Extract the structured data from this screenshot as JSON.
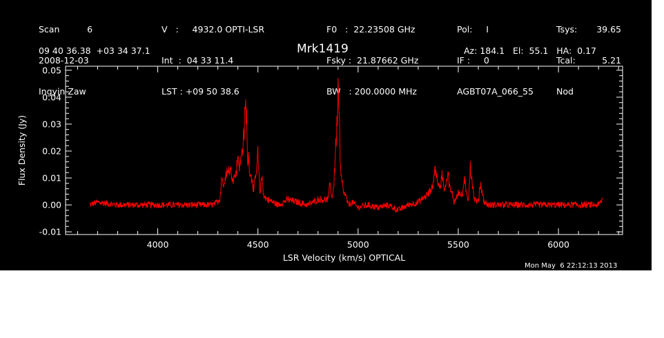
{
  "header": {
    "col1": [
      "Scan          6",
      "2008-12-03",
      "Ingyin Zaw"
    ],
    "col2": [
      "V   :     4932.0 OPTI-LSR",
      "Int  :  04 33 11.4",
      "LST : +09 50 38.6"
    ],
    "col3": [
      "F0   :  22.23508 GHz",
      "Fsky :  21.87662 GHz",
      "BW   : 200.0000 MHz"
    ],
    "col4": [
      "Pol:     I",
      "IF :     0",
      "AGBT07A_066_55"
    ],
    "col5": [
      "Tsys:",
      "Tcal:",
      "Nod"
    ],
    "col5_values": [
      "39.65",
      "5.21"
    ],
    "coords": "09 40 36.38  +03 34 37.1",
    "source": "Mrk1419",
    "az_el_ha": "Az: 184.1   El:  55.1   HA:  0.17",
    "timestamp": "Mon May  6 22:12:13 2013"
  },
  "colors": {
    "background": "#000000",
    "axes": "#ffffff",
    "trace": "#ff0000"
  },
  "chart_data": {
    "type": "line",
    "xlabel": "LSR Velocity (km/s) OPTICAL",
    "ylabel": "Flux Density (Jy)",
    "xlim": [
      3540,
      6320
    ],
    "ylim": [
      -0.011,
      0.0515
    ],
    "xticks": [
      4000,
      4500,
      5000,
      5500,
      6000
    ],
    "xtick_labels": [
      "4000",
      "4500",
      "5000",
      "5500",
      "6000"
    ],
    "yticks": [
      -0.01,
      0.0,
      0.01,
      0.02,
      0.03,
      0.04,
      0.05
    ],
    "ytick_labels": [
      "-0.01",
      "0.00",
      "0.01",
      "0.02",
      "0.03",
      "0.04",
      "0.05"
    ],
    "grid": false,
    "series": [
      {
        "x": [
          3660,
          3700,
          3800,
          3900,
          4000,
          4100,
          4200,
          4280,
          4310,
          4320,
          4330,
          4340,
          4360,
          4380,
          4390,
          4400,
          4410,
          4420,
          4430,
          4435,
          4440,
          4445,
          4450,
          4455,
          4460,
          4470,
          4480,
          4490,
          4500,
          4510,
          4520,
          4530,
          4550,
          4600,
          4650,
          4700,
          4750,
          4800,
          4850,
          4860,
          4870,
          4880,
          4890,
          4895,
          4900,
          4905,
          4910,
          4915,
          4920,
          4930,
          4940,
          4950,
          4970,
          5000,
          5050,
          5100,
          5150,
          5200,
          5250,
          5300,
          5350,
          5370,
          5380,
          5385,
          5390,
          5400,
          5410,
          5420,
          5430,
          5440,
          5450,
          5460,
          5470,
          5480,
          5500,
          5520,
          5530,
          5540,
          5550,
          5560,
          5580,
          5600,
          5610,
          5630,
          5650,
          5700,
          5800,
          5900,
          6000,
          6100,
          6200,
          6220
        ],
        "y": [
          0.0,
          0.001,
          0.0,
          0.0,
          0.0,
          0.0,
          0.0,
          0.0,
          0.002,
          0.011,
          0.006,
          0.012,
          0.013,
          0.01,
          0.012,
          0.018,
          0.014,
          0.02,
          0.026,
          0.033,
          0.037,
          0.028,
          0.014,
          0.018,
          0.012,
          0.01,
          0.005,
          0.012,
          0.019,
          0.004,
          0.011,
          0.003,
          0.002,
          0.0,
          0.002,
          0.001,
          0.0,
          0.002,
          0.002,
          0.008,
          0.002,
          0.009,
          0.025,
          0.03,
          0.047,
          0.038,
          0.02,
          0.011,
          0.008,
          0.004,
          0.003,
          0.0,
          0.001,
          -0.001,
          0.0,
          -0.001,
          0.0,
          -0.002,
          0.0,
          0.001,
          0.004,
          0.006,
          0.012,
          0.015,
          0.011,
          0.008,
          0.006,
          0.012,
          0.005,
          0.009,
          0.011,
          0.005,
          0.004,
          0.001,
          0.005,
          0.003,
          0.01,
          0.004,
          0.002,
          0.014,
          0.002,
          0.001,
          0.008,
          0.001,
          0.0,
          0.0,
          0.0,
          0.0,
          0.0,
          0.0,
          0.0,
          0.002
        ]
      }
    ]
  }
}
